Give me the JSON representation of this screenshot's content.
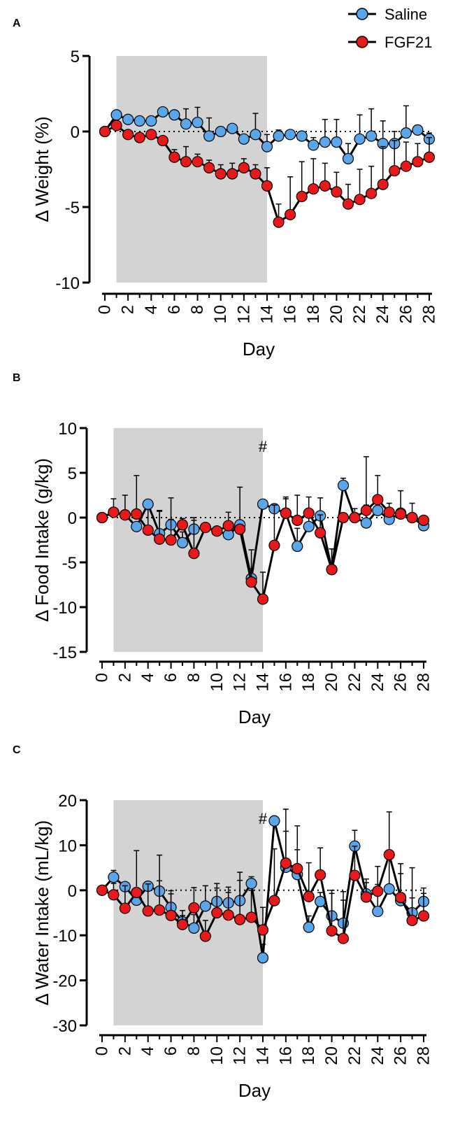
{
  "legend": {
    "items": [
      {
        "label": "Saline",
        "color": "#5aa6ea"
      },
      {
        "label": "FGF21",
        "color": "#e8191b"
      }
    ]
  },
  "chart_data": [
    {
      "panel": "A",
      "type": "line",
      "title": "",
      "xlabel": "Day",
      "ylabel": "Δ Weight (%)",
      "xlim": [
        0,
        28
      ],
      "ylim": [
        -10,
        5
      ],
      "xticks": [
        0,
        2,
        4,
        6,
        8,
        10,
        12,
        14,
        16,
        18,
        20,
        22,
        24,
        26,
        28
      ],
      "yticks": [
        5,
        0,
        -5,
        -10
      ],
      "shaded_region": [
        1,
        14
      ],
      "reference_line": 0,
      "annotations": [],
      "series": [
        {
          "name": "Saline",
          "color": "#5aa6ea",
          "x": [
            0,
            1,
            2,
            3,
            4,
            5,
            6,
            7,
            8,
            9,
            10,
            11,
            12,
            13,
            14,
            15,
            16,
            17,
            18,
            19,
            20,
            21,
            22,
            23,
            24,
            25,
            26,
            27,
            28
          ],
          "values": [
            0,
            1.1,
            0.8,
            0.7,
            0.7,
            1.3,
            1.1,
            0.5,
            0.6,
            -0.3,
            0.0,
            0.2,
            -0.5,
            -0.2,
            -1.0,
            -0.3,
            -0.2,
            -0.3,
            -0.9,
            -0.7,
            -0.7,
            -1.8,
            -0.5,
            -0.3,
            -0.8,
            -0.8,
            -0.1,
            0.1,
            -0.5
          ],
          "errors": [
            0,
            0,
            0,
            0,
            0,
            0,
            0,
            1.0,
            1.0,
            1.2,
            0,
            0,
            0,
            1.4,
            0.8,
            0.4,
            0.3,
            0.3,
            0.5,
            1.5,
            1.5,
            1.0,
            1.6,
            1.8,
            1.5,
            0.8,
            1.8,
            0.3,
            0.4
          ]
        },
        {
          "name": "FGF21",
          "color": "#e8191b",
          "x": [
            0,
            1,
            2,
            3,
            4,
            5,
            6,
            7,
            8,
            9,
            10,
            11,
            12,
            13,
            14,
            15,
            16,
            17,
            18,
            19,
            20,
            21,
            22,
            23,
            24,
            25,
            26,
            27,
            28
          ],
          "values": [
            0,
            0.4,
            -0.2,
            -0.4,
            -0.2,
            -0.6,
            -1.7,
            -2.0,
            -2.0,
            -2.4,
            -2.8,
            -2.8,
            -2.4,
            -2.8,
            -3.6,
            -6.0,
            -5.5,
            -4.3,
            -3.8,
            -3.6,
            -4.0,
            -4.8,
            -4.5,
            -4.1,
            -3.5,
            -2.6,
            -2.3,
            -2.0,
            -1.7
          ],
          "errors": [
            0,
            0,
            0,
            0,
            0,
            0,
            0.5,
            1.0,
            0.5,
            0.5,
            0.6,
            0.7,
            0.6,
            0.6,
            1.2,
            1.2,
            2.5,
            2.3,
            2.0,
            1.5,
            1.3,
            1.3,
            2.0,
            1.8,
            2.5,
            2.0,
            1.6,
            1.2,
            1.3
          ]
        }
      ]
    },
    {
      "panel": "B",
      "type": "line",
      "title": "",
      "xlabel": "Day",
      "ylabel": "Δ Food Intake (g/kg)",
      "xlim": [
        0,
        28
      ],
      "ylim": [
        -15,
        10
      ],
      "xticks": [
        0,
        2,
        4,
        6,
        8,
        10,
        12,
        14,
        16,
        18,
        20,
        22,
        24,
        26,
        28
      ],
      "yticks": [
        10,
        5,
        0,
        -5,
        -10,
        -15
      ],
      "shaded_region": [
        1,
        14
      ],
      "reference_line": 0,
      "annotations": [
        {
          "text": "#",
          "x": 14
        }
      ],
      "series": [
        {
          "name": "Saline",
          "color": "#5aa6ea",
          "x": [
            0,
            1,
            2,
            3,
            4,
            5,
            6,
            7,
            8,
            9,
            10,
            11,
            12,
            13,
            14,
            15,
            16,
            17,
            18,
            19,
            20,
            21,
            22,
            23,
            24,
            25,
            26,
            27,
            28
          ],
          "values": [
            0,
            0.6,
            0.3,
            -1.0,
            1.5,
            -1.8,
            -0.8,
            -2.8,
            -1.3,
            -1.1,
            -1.5,
            -1.9,
            -0.8,
            -6.8,
            1.5,
            1.0,
            0.5,
            -3.2,
            -1.0,
            0.2,
            -5.8,
            3.6,
            0.0,
            -0.6,
            0.8,
            -0.2,
            0.5,
            0.0,
            -0.9
          ],
          "errors": [
            0,
            1.5,
            2.2,
            0,
            0,
            2.5,
            3.0,
            1.2,
            1.3,
            0,
            0,
            0.8,
            4.2,
            3.2,
            0,
            0,
            1.6,
            2.0,
            1.8,
            2.0,
            2.3,
            0.8,
            1.0,
            2.0,
            1.5,
            0,
            2.5,
            1.6,
            0.8
          ]
        },
        {
          "name": "FGF21",
          "color": "#e8191b",
          "x": [
            0,
            1,
            2,
            3,
            4,
            5,
            6,
            7,
            8,
            9,
            10,
            11,
            12,
            13,
            14,
            15,
            16,
            17,
            18,
            19,
            20,
            21,
            22,
            23,
            24,
            25,
            26,
            27,
            28
          ],
          "values": [
            0,
            0.6,
            0.3,
            0.4,
            -1.4,
            -2.4,
            -2.5,
            -0.8,
            -4.0,
            -1.1,
            -1.5,
            -0.9,
            -1.3,
            -7.2,
            -9.1,
            -3.1,
            0.5,
            -0.3,
            0.5,
            -1.7,
            -5.8,
            0.0,
            0.0,
            0.8,
            2.0,
            0.6,
            0.4,
            0.0,
            -0.3
          ],
          "errors": [
            0,
            0,
            0,
            4.3,
            2.3,
            3.2,
            2.3,
            0.7,
            3.7,
            0,
            0,
            1.5,
            0,
            1.5,
            3.0,
            4.5,
            1.8,
            2.8,
            1.8,
            2.0,
            2.3,
            0,
            0,
            6.0,
            2.7,
            1.0,
            0,
            0,
            0
          ]
        }
      ]
    },
    {
      "panel": "C",
      "type": "line",
      "title": "",
      "xlabel": "Day",
      "ylabel": "Δ Water Intake (mL/kg)",
      "xlim": [
        0,
        28
      ],
      "ylim": [
        -30,
        20
      ],
      "xticks": [
        0,
        2,
        4,
        6,
        8,
        10,
        12,
        14,
        16,
        18,
        20,
        22,
        24,
        26,
        28
      ],
      "yticks": [
        20,
        10,
        0,
        -10,
        -20,
        -30
      ],
      "shaded_region": [
        1,
        14
      ],
      "reference_line": 0,
      "annotations": [
        {
          "text": "#",
          "x": 14
        }
      ],
      "series": [
        {
          "name": "Saline",
          "color": "#5aa6ea",
          "x": [
            0,
            1,
            2,
            3,
            4,
            5,
            6,
            7,
            8,
            9,
            10,
            11,
            12,
            13,
            14,
            15,
            16,
            17,
            18,
            19,
            20,
            21,
            22,
            23,
            24,
            25,
            26,
            27,
            28
          ],
          "values": [
            0,
            2.9,
            0.8,
            -2.2,
            0.9,
            -0.2,
            -3.8,
            -7.0,
            -8.4,
            -3.5,
            -2.5,
            -2.8,
            -2.3,
            1.5,
            -15.0,
            15.4,
            5.1,
            3.5,
            -8.2,
            -2.5,
            -5.7,
            -7.3,
            9.8,
            -0.8,
            -4.7,
            0.3,
            -2.3,
            -5.0,
            -2.5
          ],
          "errors": [
            0,
            1.5,
            0,
            11,
            0,
            8,
            3,
            2.5,
            3,
            4.5,
            4,
            3.5,
            4.5,
            1.5,
            3,
            0,
            8,
            5.5,
            2.5,
            2,
            5,
            7,
            3.5,
            2.5,
            6,
            8,
            6,
            10,
            3
          ]
        },
        {
          "name": "FGF21",
          "color": "#e8191b",
          "x": [
            0,
            1,
            2,
            3,
            4,
            5,
            6,
            7,
            8,
            9,
            10,
            11,
            12,
            13,
            14,
            15,
            16,
            17,
            18,
            19,
            20,
            21,
            22,
            23,
            24,
            25,
            26,
            27,
            28
          ],
          "values": [
            0,
            -1.0,
            -4.0,
            -0.5,
            -4.6,
            -4.4,
            -5.6,
            -7.6,
            -3.9,
            -10.2,
            -5.0,
            -5.5,
            -6.5,
            -6.0,
            -8.8,
            -2.3,
            6.0,
            4.8,
            -1.4,
            3.4,
            -9.0,
            -10.7,
            3.3,
            -1.5,
            -0.2,
            7.9,
            -1.6,
            -6.7,
            -5.7
          ],
          "errors": [
            0,
            2.5,
            5,
            0,
            6,
            6.5,
            5.5,
            2,
            4.5,
            3.5,
            5.5,
            5,
            10.5,
            6,
            5,
            11.5,
            12,
            9.5,
            7.5,
            6,
            9,
            8.5,
            6.5,
            4,
            5.5,
            9.5,
            7.5,
            5,
            5
          ]
        }
      ]
    }
  ]
}
